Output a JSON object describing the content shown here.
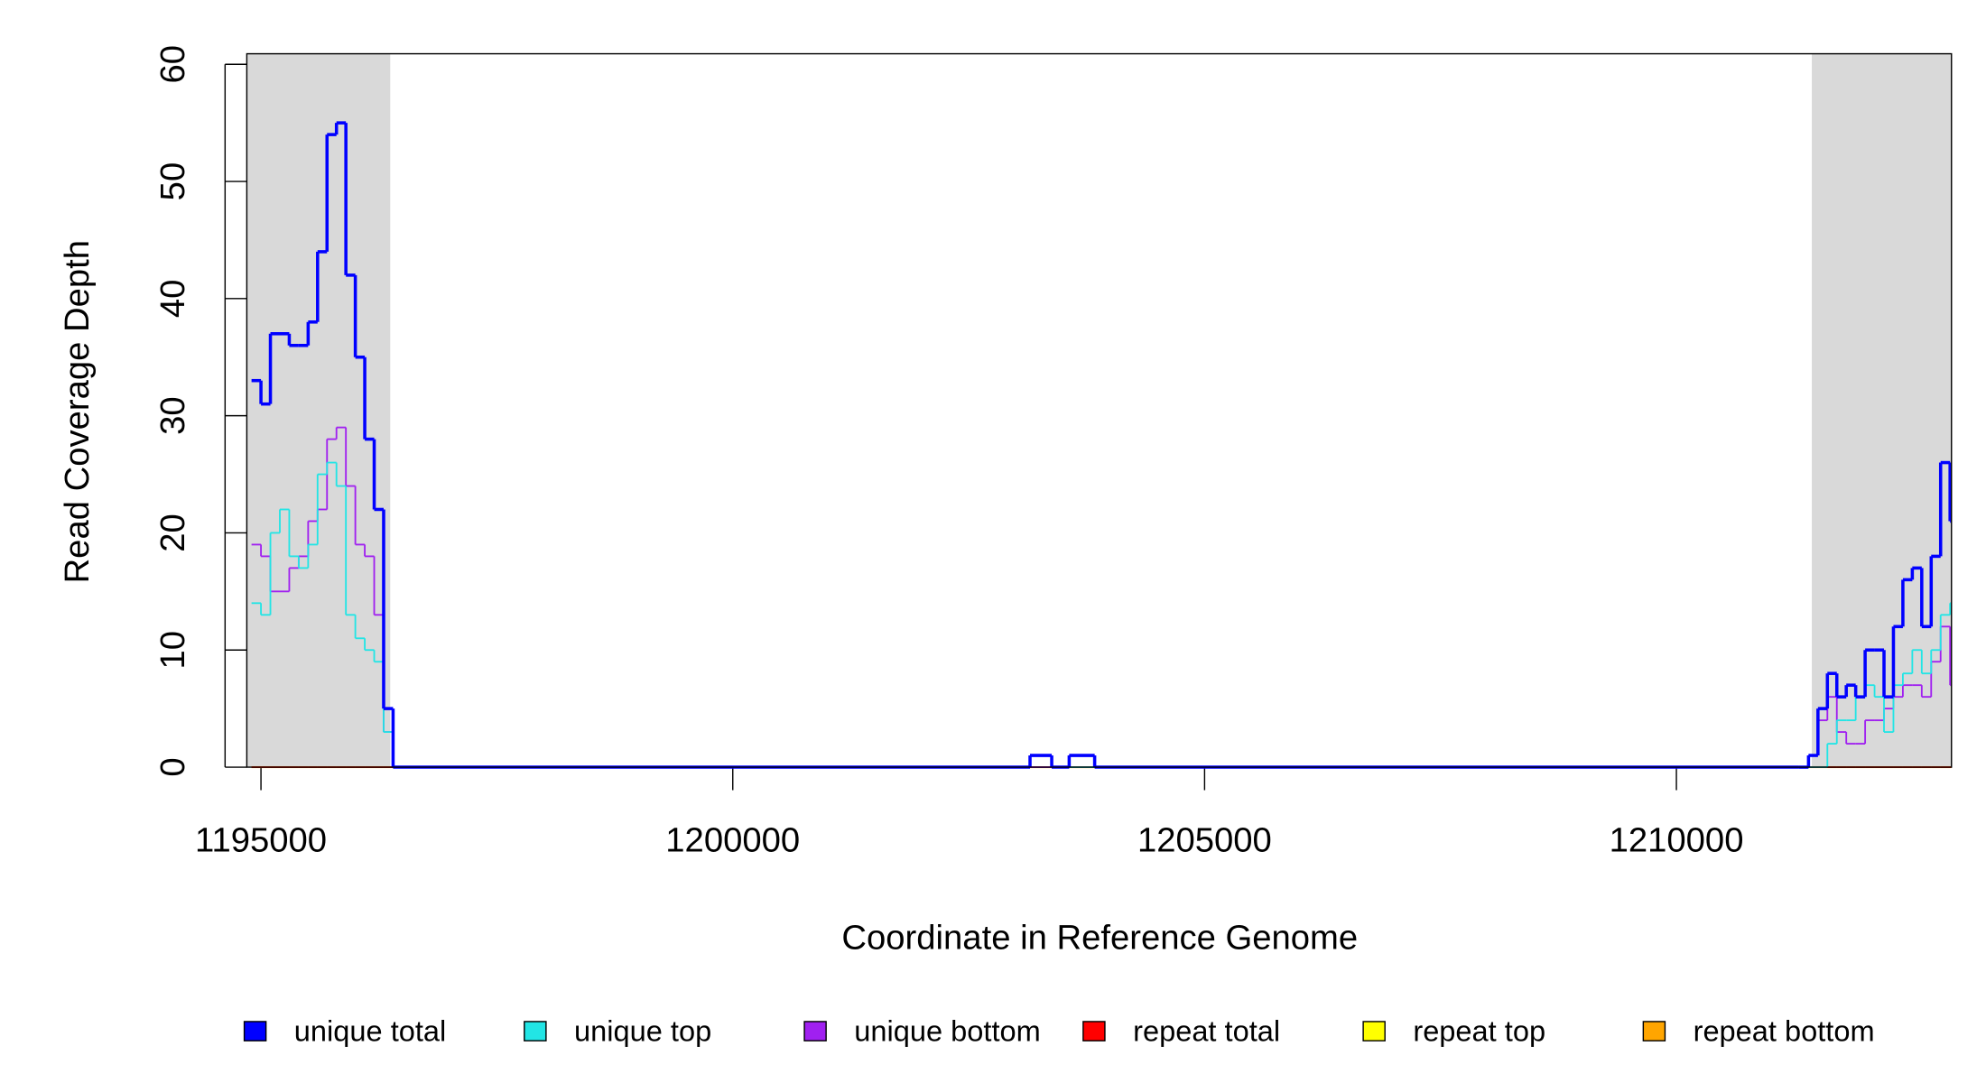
{
  "chart_data": {
    "type": "step",
    "x_label": "Coordinate in Reference Genome",
    "y_label": "Read Coverage Depth",
    "xlim": [
      1194850,
      1212915
    ],
    "ylim": [
      0,
      60.9
    ],
    "xticks": [
      1195000,
      1200000,
      1205000,
      1210000
    ],
    "yticks": [
      0,
      10,
      20,
      30,
      40,
      50,
      60
    ],
    "shaded_regions": [
      [
        1194850,
        1196370
      ],
      [
        1211435,
        1212915
      ]
    ],
    "shade_color": "#d9d9d9",
    "x": [
      1194900,
      1195000,
      1195100,
      1195200,
      1195300,
      1195400,
      1195500,
      1195600,
      1195700,
      1195800,
      1195900,
      1196000,
      1196100,
      1196200,
      1196300,
      1196400,
      1203150,
      1203380,
      1203565,
      1203835,
      1211300,
      1211400,
      1211500,
      1211600,
      1211700,
      1211800,
      1211900,
      1212000,
      1212100,
      1212200,
      1212300,
      1212400,
      1212500,
      1212600,
      1212700,
      1212800,
      1212900
    ],
    "series": [
      {
        "name": "unique total",
        "color": "#0000ff",
        "width": 2.5,
        "values": [
          33,
          31,
          37,
          37,
          36,
          36,
          38,
          44,
          54,
          55,
          42,
          35,
          28,
          22,
          5,
          0,
          1,
          0,
          1,
          0,
          0,
          1,
          5,
          8,
          6,
          7,
          6,
          10,
          10,
          6,
          12,
          16,
          17,
          12,
          18,
          26,
          21
        ]
      },
      {
        "name": "unique top",
        "color": "#22e5e5",
        "width": 1.3,
        "values": [
          14,
          13,
          20,
          22,
          18,
          17,
          19,
          25,
          26,
          24,
          13,
          11,
          10,
          9,
          3,
          0,
          1,
          0,
          0,
          0,
          0,
          0,
          0,
          2,
          4,
          4,
          6,
          7,
          6,
          3,
          7,
          8,
          10,
          8,
          10,
          13,
          14
        ]
      },
      {
        "name": "unique bottom",
        "color": "#a020f0",
        "width": 1.3,
        "values": [
          19,
          18,
          15,
          15,
          17,
          18,
          21,
          22,
          28,
          29,
          24,
          19,
          18,
          13,
          3,
          0,
          0,
          0,
          1,
          0,
          0,
          1,
          4,
          6,
          3,
          2,
          2,
          4,
          4,
          5,
          6,
          7,
          7,
          6,
          9,
          12,
          7
        ]
      },
      {
        "name": "repeat total",
        "color": "#ff0000",
        "width": 1.3,
        "values": [
          0,
          0,
          0,
          0,
          0,
          0,
          0,
          0,
          0,
          0,
          0,
          0,
          0,
          0,
          0,
          0,
          0,
          0,
          0,
          0,
          0,
          0,
          0,
          0,
          0,
          0,
          0,
          0,
          0,
          0,
          0,
          0,
          0,
          0,
          0,
          0,
          0
        ]
      },
      {
        "name": "repeat top",
        "color": "#ffff00",
        "width": 1.3,
        "values": [
          0,
          0,
          0,
          0,
          0,
          0,
          0,
          0,
          0,
          0,
          0,
          0,
          0,
          0,
          0,
          0,
          0,
          0,
          0,
          0,
          0,
          0,
          0,
          0,
          0,
          0,
          0,
          0,
          0,
          0,
          0,
          0,
          0,
          0,
          0,
          0,
          0
        ]
      },
      {
        "name": "repeat bottom",
        "color": "#ffa500",
        "width": 1.5,
        "values": [
          0,
          0,
          0,
          0,
          0,
          0,
          0,
          0,
          0,
          0,
          0,
          0,
          0,
          0,
          0,
          0,
          0,
          0,
          0,
          0,
          0,
          0,
          0,
          0,
          0,
          0,
          0,
          0,
          0,
          0,
          0,
          0,
          0,
          0,
          0,
          0,
          0
        ]
      }
    ]
  }
}
